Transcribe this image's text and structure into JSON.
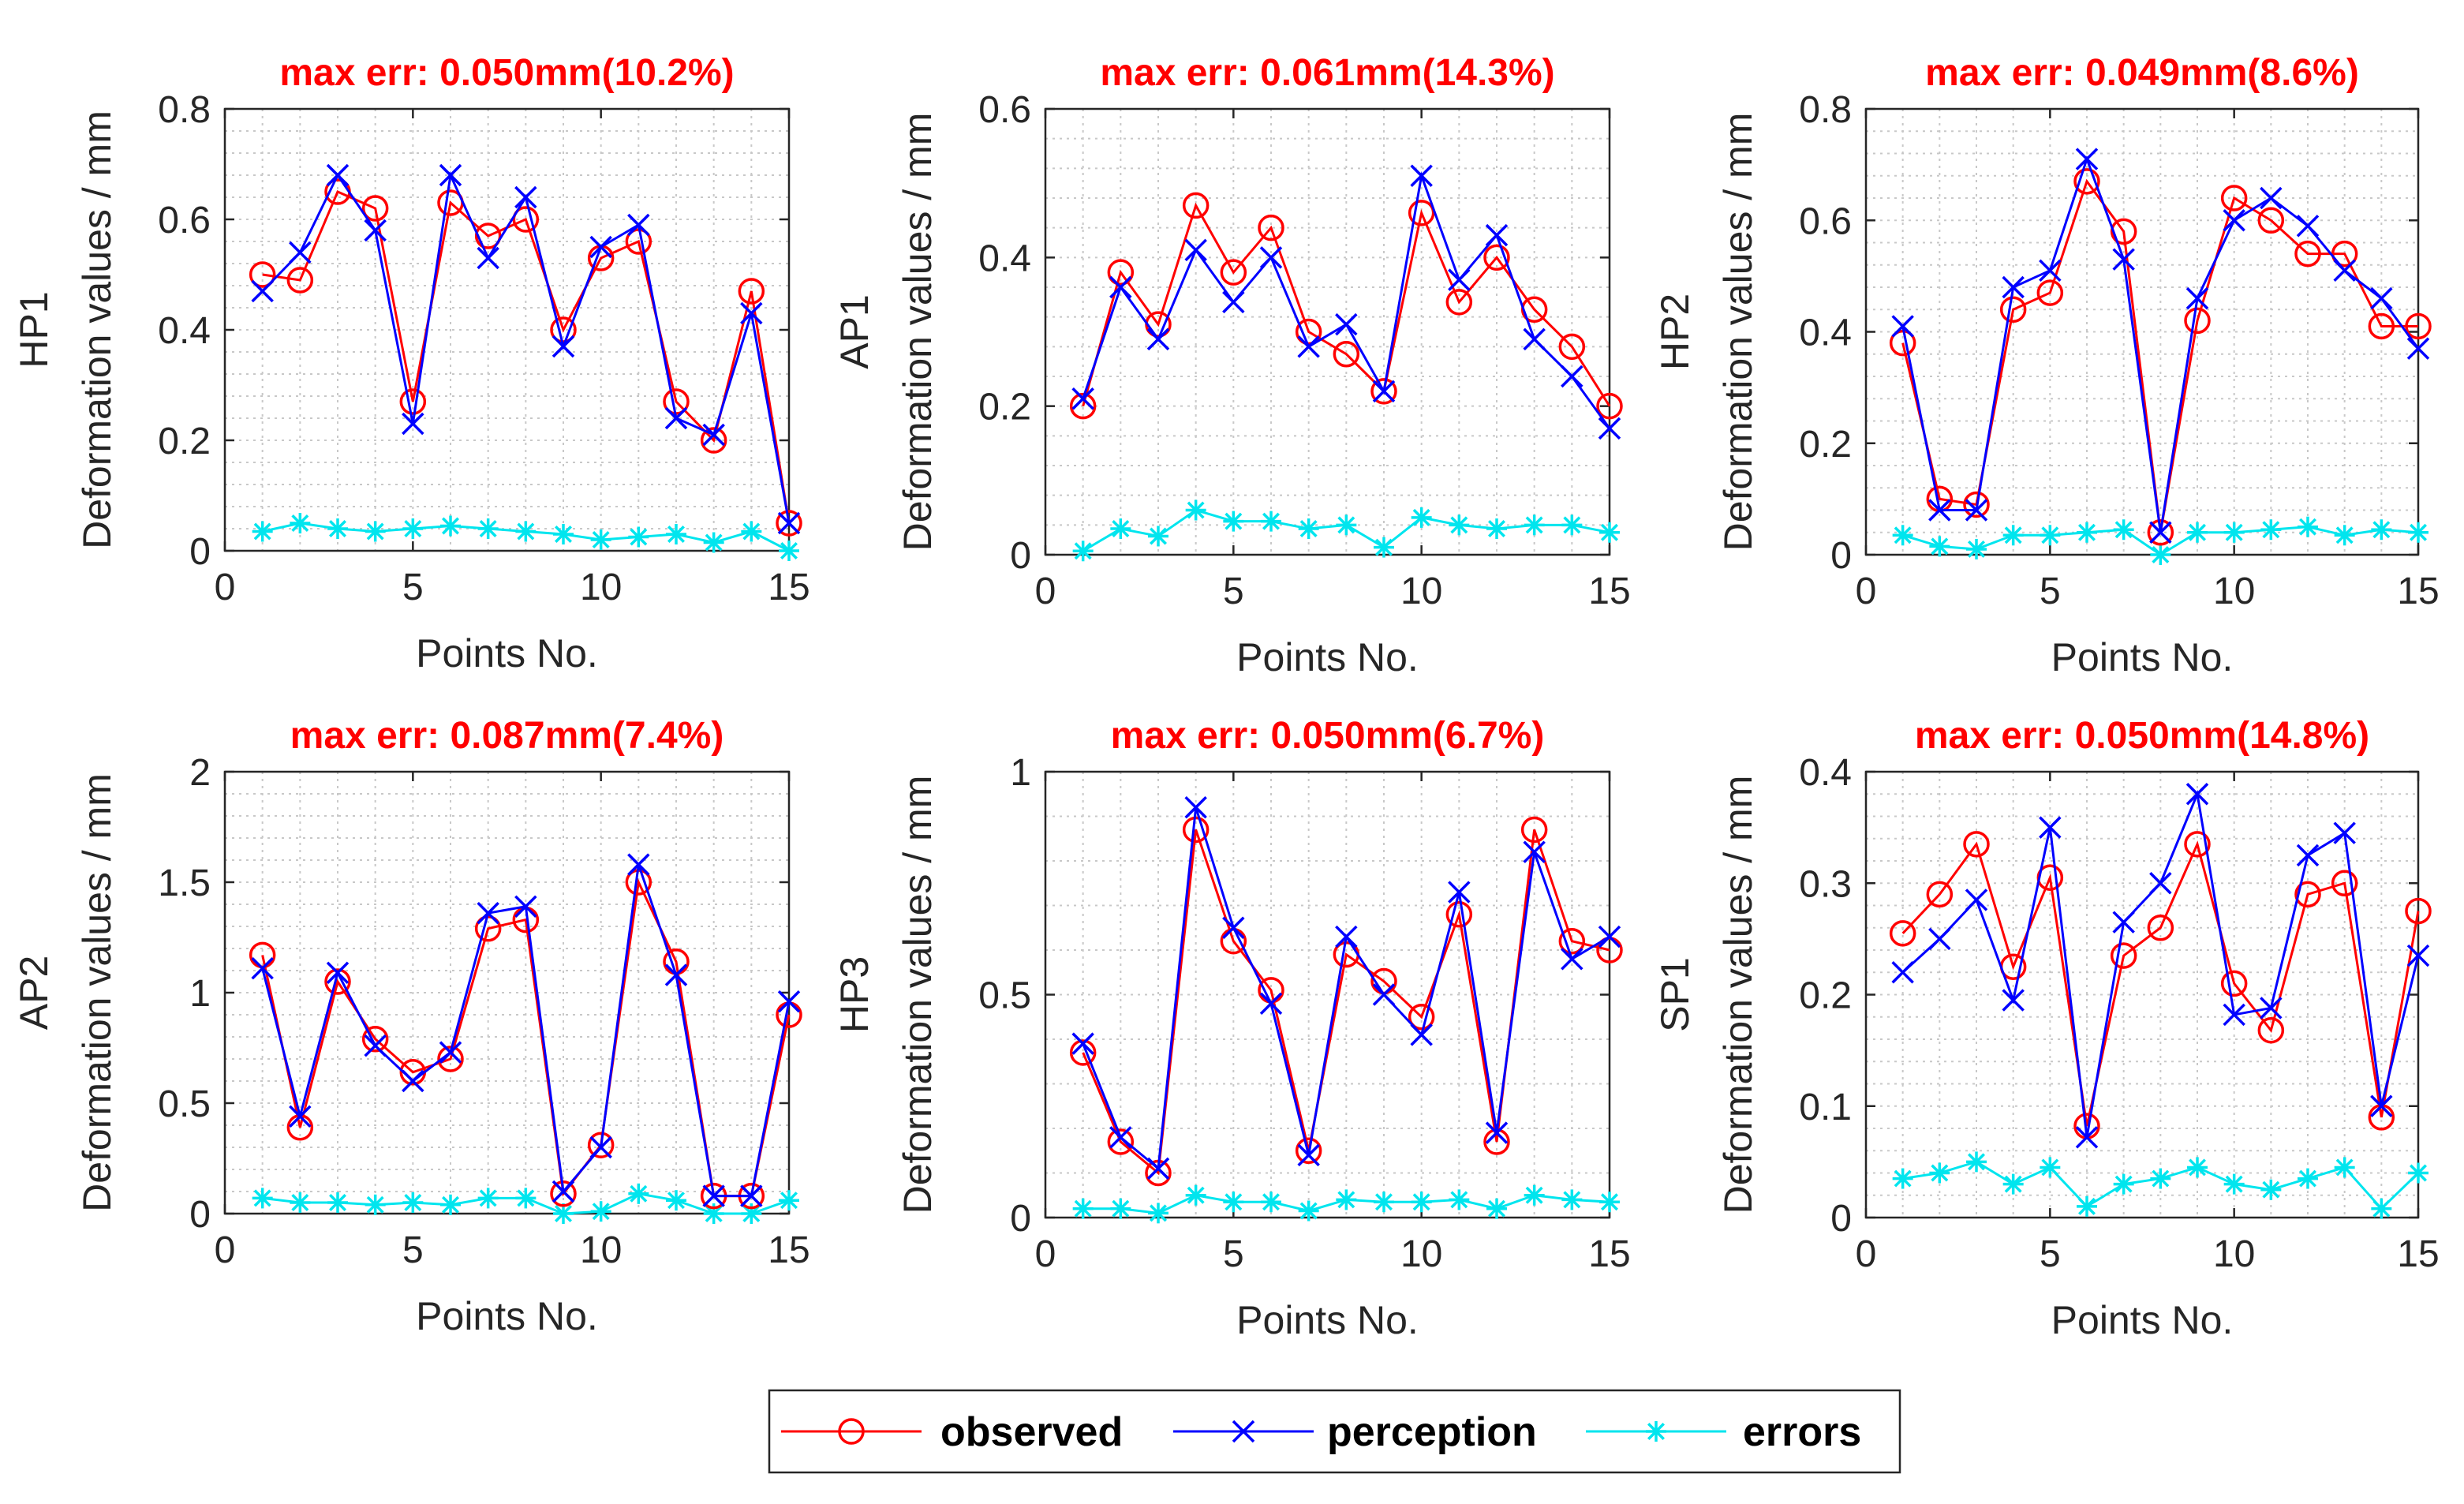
{
  "colors": {
    "observed": "#ff0000",
    "perception": "#0000ff",
    "errors": "#00e5ee",
    "title": "#ff0000",
    "axis": "#262626",
    "grid": "#c8c8c8"
  },
  "legend": {
    "entries": [
      {
        "label": "observed",
        "marker": "circle",
        "color": "#ff0000"
      },
      {
        "label": "perception",
        "marker": "x",
        "color": "#0000ff"
      },
      {
        "label": "errors",
        "marker": "asterisk",
        "color": "#00e5ee"
      }
    ]
  },
  "chart_data": [
    {
      "type": "line",
      "title": "max err: 0.050mm(10.2%)",
      "xlabel": "Points No.",
      "ylabel": "Deformation values / mm",
      "series_label": "HP1",
      "xlim": [
        0,
        15
      ],
      "ylim": [
        0,
        0.8
      ],
      "xticks": [
        "0",
        "5",
        "10",
        "15"
      ],
      "yticks": [
        "0",
        "0.2",
        "0.4",
        "0.6",
        "0.8"
      ],
      "x": [
        1,
        2,
        3,
        4,
        5,
        6,
        7,
        8,
        9,
        10,
        11,
        12,
        13,
        14,
        15
      ],
      "series": [
        {
          "name": "observed",
          "values": [
            0.5,
            0.49,
            0.65,
            0.62,
            0.27,
            0.63,
            0.57,
            0.6,
            0.4,
            0.53,
            0.56,
            0.27,
            0.2,
            0.47,
            0.05
          ]
        },
        {
          "name": "perception",
          "values": [
            0.47,
            0.54,
            0.68,
            0.58,
            0.23,
            0.68,
            0.53,
            0.64,
            0.37,
            0.55,
            0.59,
            0.24,
            0.21,
            0.43,
            0.05
          ]
        },
        {
          "name": "errors",
          "values": [
            0.035,
            0.05,
            0.04,
            0.035,
            0.04,
            0.045,
            0.04,
            0.035,
            0.03,
            0.02,
            0.025,
            0.03,
            0.015,
            0.035,
            0.0
          ]
        }
      ],
      "grid": true
    },
    {
      "type": "line",
      "title": "max err: 0.061mm(14.3%)",
      "xlabel": "Points No.",
      "ylabel": "Deformation values / mm",
      "series_label": "AP1",
      "xlim": [
        0,
        15
      ],
      "ylim": [
        0,
        0.6
      ],
      "xticks": [
        "0",
        "5",
        "10",
        "15"
      ],
      "yticks": [
        "0",
        "0.2",
        "0.4",
        "0.6"
      ],
      "x": [
        1,
        2,
        3,
        4,
        5,
        6,
        7,
        8,
        9,
        10,
        11,
        12,
        13,
        14,
        15
      ],
      "series": [
        {
          "name": "observed",
          "values": [
            0.2,
            0.38,
            0.31,
            0.47,
            0.38,
            0.44,
            0.3,
            0.27,
            0.22,
            0.46,
            0.34,
            0.4,
            0.33,
            0.28,
            0.2
          ]
        },
        {
          "name": "perception",
          "values": [
            0.21,
            0.36,
            0.29,
            0.41,
            0.34,
            0.4,
            0.28,
            0.31,
            0.22,
            0.51,
            0.37,
            0.43,
            0.29,
            0.24,
            0.17
          ]
        },
        {
          "name": "errors",
          "values": [
            0.005,
            0.035,
            0.025,
            0.06,
            0.045,
            0.045,
            0.035,
            0.04,
            0.01,
            0.05,
            0.04,
            0.035,
            0.04,
            0.04,
            0.03
          ]
        }
      ],
      "grid": true
    },
    {
      "type": "line",
      "title": "max err: 0.049mm(8.6%)",
      "xlabel": "Points No.",
      "ylabel": "Deformation values / mm",
      "series_label": "HP2",
      "xlim": [
        0,
        15
      ],
      "ylim": [
        0,
        0.8
      ],
      "xticks": [
        "0",
        "5",
        "10",
        "15"
      ],
      "yticks": [
        "0",
        "0.2",
        "0.4",
        "0.6",
        "0.8"
      ],
      "x": [
        1,
        2,
        3,
        4,
        5,
        6,
        7,
        8,
        9,
        10,
        11,
        12,
        13,
        14,
        15
      ],
      "series": [
        {
          "name": "observed",
          "values": [
            0.38,
            0.1,
            0.09,
            0.44,
            0.47,
            0.67,
            0.58,
            0.04,
            0.42,
            0.64,
            0.6,
            0.54,
            0.54,
            0.41,
            0.41
          ]
        },
        {
          "name": "perception",
          "values": [
            0.41,
            0.08,
            0.08,
            0.48,
            0.51,
            0.71,
            0.53,
            0.04,
            0.46,
            0.6,
            0.64,
            0.59,
            0.51,
            0.46,
            0.37
          ]
        },
        {
          "name": "errors",
          "values": [
            0.035,
            0.015,
            0.01,
            0.035,
            0.035,
            0.04,
            0.045,
            0.0,
            0.04,
            0.04,
            0.045,
            0.05,
            0.035,
            0.045,
            0.04
          ]
        }
      ],
      "grid": true
    },
    {
      "type": "line",
      "title": "max err: 0.087mm(7.4%)",
      "xlabel": "Points No.",
      "ylabel": "Deformation values / mm",
      "series_label": "AP2",
      "xlim": [
        0,
        15
      ],
      "ylim": [
        0,
        2
      ],
      "xticks": [
        "0",
        "5",
        "10",
        "15"
      ],
      "yticks": [
        "0",
        "0.5",
        "1",
        "1.5",
        "2"
      ],
      "x": [
        1,
        2,
        3,
        4,
        5,
        6,
        7,
        8,
        9,
        10,
        11,
        12,
        13,
        14,
        15
      ],
      "series": [
        {
          "name": "observed",
          "values": [
            1.17,
            0.39,
            1.05,
            0.79,
            0.64,
            0.7,
            1.29,
            1.33,
            0.09,
            0.31,
            1.5,
            1.14,
            0.08,
            0.08,
            0.9
          ]
        },
        {
          "name": "perception",
          "values": [
            1.11,
            0.44,
            1.09,
            0.76,
            0.6,
            0.73,
            1.36,
            1.39,
            0.1,
            0.3,
            1.58,
            1.08,
            0.08,
            0.08,
            0.96
          ]
        },
        {
          "name": "errors",
          "values": [
            0.07,
            0.05,
            0.05,
            0.04,
            0.05,
            0.04,
            0.07,
            0.07,
            0.0,
            0.01,
            0.09,
            0.06,
            0.0,
            0.0,
            0.06
          ]
        }
      ],
      "grid": true
    },
    {
      "type": "line",
      "title": "max err: 0.050mm(6.7%)",
      "xlabel": "Points No.",
      "ylabel": "Deformation values / mm",
      "series_label": "HP3",
      "xlim": [
        0,
        15
      ],
      "ylim": [
        0,
        1
      ],
      "xticks": [
        "0",
        "5",
        "10",
        "15"
      ],
      "yticks": [
        "0",
        "0.5",
        "1"
      ],
      "x": [
        1,
        2,
        3,
        4,
        5,
        6,
        7,
        8,
        9,
        10,
        11,
        12,
        13,
        14,
        15
      ],
      "series": [
        {
          "name": "observed",
          "values": [
            0.37,
            0.17,
            0.1,
            0.87,
            0.62,
            0.51,
            0.15,
            0.59,
            0.53,
            0.45,
            0.68,
            0.17,
            0.87,
            0.62,
            0.6
          ]
        },
        {
          "name": "perception",
          "values": [
            0.39,
            0.18,
            0.11,
            0.92,
            0.65,
            0.48,
            0.14,
            0.63,
            0.5,
            0.41,
            0.73,
            0.19,
            0.82,
            0.58,
            0.63
          ]
        },
        {
          "name": "errors",
          "values": [
            0.02,
            0.02,
            0.01,
            0.05,
            0.035,
            0.035,
            0.015,
            0.04,
            0.035,
            0.035,
            0.04,
            0.02,
            0.05,
            0.04,
            0.035
          ]
        }
      ],
      "grid": true
    },
    {
      "type": "line",
      "title": "max err: 0.050mm(14.8%)",
      "xlabel": "Points No.",
      "ylabel": "Deformation values / mm",
      "series_label": "SP1",
      "xlim": [
        0,
        15
      ],
      "ylim": [
        0,
        0.4
      ],
      "xticks": [
        "0",
        "5",
        "10",
        "15"
      ],
      "yticks": [
        "0",
        "0.1",
        "0.2",
        "0.3",
        "0.4"
      ],
      "x": [
        1,
        2,
        3,
        4,
        5,
        6,
        7,
        8,
        9,
        10,
        11,
        12,
        13,
        14,
        15
      ],
      "series": [
        {
          "name": "observed",
          "values": [
            0.255,
            0.29,
            0.335,
            0.225,
            0.305,
            0.082,
            0.235,
            0.26,
            0.335,
            0.21,
            0.168,
            0.29,
            0.3,
            0.09,
            0.275
          ]
        },
        {
          "name": "perception",
          "values": [
            0.22,
            0.25,
            0.285,
            0.195,
            0.35,
            0.072,
            0.265,
            0.3,
            0.38,
            0.182,
            0.188,
            0.325,
            0.345,
            0.1,
            0.235
          ]
        },
        {
          "name": "errors",
          "values": [
            0.035,
            0.04,
            0.05,
            0.03,
            0.045,
            0.01,
            0.03,
            0.035,
            0.045,
            0.03,
            0.025,
            0.035,
            0.045,
            0.008,
            0.04
          ]
        }
      ],
      "grid": true
    }
  ]
}
